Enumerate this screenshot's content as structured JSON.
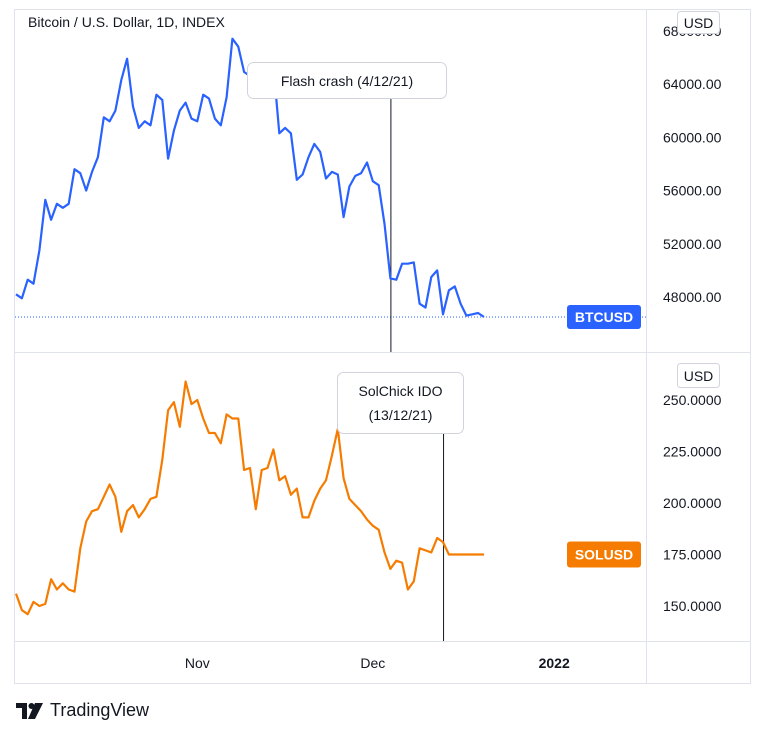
{
  "chart_data": [
    {
      "type": "line",
      "title": "Bitcoin / U.S. Dollar, 1D, INDEX",
      "series": [
        {
          "name": "BTCUSD",
          "color": "#2962ff",
          "x": [
            "2021-10-01",
            "2021-10-02",
            "2021-10-03",
            "2021-10-04",
            "2021-10-05",
            "2021-10-06",
            "2021-10-07",
            "2021-10-08",
            "2021-10-09",
            "2021-10-10",
            "2021-10-11",
            "2021-10-12",
            "2021-10-13",
            "2021-10-14",
            "2021-10-15",
            "2021-10-16",
            "2021-10-17",
            "2021-10-18",
            "2021-10-19",
            "2021-10-20",
            "2021-10-21",
            "2021-10-22",
            "2021-10-23",
            "2021-10-24",
            "2021-10-25",
            "2021-10-26",
            "2021-10-27",
            "2021-10-28",
            "2021-10-29",
            "2021-10-30",
            "2021-10-31",
            "2021-11-01",
            "2021-11-02",
            "2021-11-03",
            "2021-11-04",
            "2021-11-05",
            "2021-11-06",
            "2021-11-07",
            "2021-11-08",
            "2021-11-09",
            "2021-11-10",
            "2021-11-11",
            "2021-11-12",
            "2021-11-13",
            "2021-11-14",
            "2021-11-15",
            "2021-11-16",
            "2021-11-17",
            "2021-11-18",
            "2021-11-19",
            "2021-11-20",
            "2021-11-21",
            "2021-11-22",
            "2021-11-23",
            "2021-11-24",
            "2021-11-25",
            "2021-11-26",
            "2021-11-27",
            "2021-11-28",
            "2021-11-29",
            "2021-11-30",
            "2021-12-01",
            "2021-12-02",
            "2021-12-03",
            "2021-12-04",
            "2021-12-05",
            "2021-12-06",
            "2021-12-07",
            "2021-12-08",
            "2021-12-09",
            "2021-12-10",
            "2021-12-11",
            "2021-12-12",
            "2021-12-13",
            "2021-12-14",
            "2021-12-15",
            "2021-12-16",
            "2021-12-17",
            "2021-12-18",
            "2021-12-19",
            "2021-12-20"
          ],
          "values": [
            48200,
            47900,
            49300,
            49000,
            51500,
            55300,
            53800,
            55000,
            54700,
            55000,
            57600,
            57300,
            56000,
            57400,
            58500,
            61500,
            61200,
            62000,
            64300,
            65900,
            62300,
            60700,
            61200,
            60900,
            63200,
            62800,
            58400,
            60500,
            62000,
            62600,
            61400,
            61200,
            63200,
            62900,
            61400,
            60900,
            63000,
            67400,
            66800,
            64900,
            64600,
            64000,
            64200,
            64300,
            65400,
            60300,
            60700,
            60300,
            56800,
            57200,
            58500,
            59500,
            58900,
            56900,
            57400,
            57200,
            54000,
            56300,
            57100,
            57300,
            58100,
            56700,
            56400,
            53500,
            49400,
            49300,
            50500,
            50500,
            50600,
            47500,
            47200,
            49500,
            50000,
            46700,
            48500,
            48800,
            47500,
            46600,
            46700,
            46800,
            46500
          ],
          "last_label": "BTCUSD"
        }
      ],
      "y_ticks": [
        "68000.00",
        "64000.00",
        "60000.00",
        "56000.00",
        "52000.00",
        "48000.00"
      ],
      "unit_badge": "USD",
      "annotation": {
        "label": "Flash crash (4/12/21)",
        "date": "2021-12-04"
      },
      "show_price_line": true
    },
    {
      "type": "line",
      "series": [
        {
          "name": "SOLUSD",
          "color": "#f57c00",
          "x": [
            "2021-10-01",
            "2021-10-02",
            "2021-10-03",
            "2021-10-04",
            "2021-10-05",
            "2021-10-06",
            "2021-10-07",
            "2021-10-08",
            "2021-10-09",
            "2021-10-10",
            "2021-10-11",
            "2021-10-12",
            "2021-10-13",
            "2021-10-14",
            "2021-10-15",
            "2021-10-16",
            "2021-10-17",
            "2021-10-18",
            "2021-10-19",
            "2021-10-20",
            "2021-10-21",
            "2021-10-22",
            "2021-10-23",
            "2021-10-24",
            "2021-10-25",
            "2021-10-26",
            "2021-10-27",
            "2021-10-28",
            "2021-10-29",
            "2021-10-30",
            "2021-10-31",
            "2021-11-01",
            "2021-11-02",
            "2021-11-03",
            "2021-11-04",
            "2021-11-05",
            "2021-11-06",
            "2021-11-07",
            "2021-11-08",
            "2021-11-09",
            "2021-11-10",
            "2021-11-11",
            "2021-11-12",
            "2021-11-13",
            "2021-11-14",
            "2021-11-15",
            "2021-11-16",
            "2021-11-17",
            "2021-11-18",
            "2021-11-19",
            "2021-11-20",
            "2021-11-21",
            "2021-11-22",
            "2021-11-23",
            "2021-11-24",
            "2021-11-25",
            "2021-11-26",
            "2021-11-27",
            "2021-11-28",
            "2021-11-29",
            "2021-11-30",
            "2021-12-01",
            "2021-12-02",
            "2021-12-03",
            "2021-12-04",
            "2021-12-05",
            "2021-12-06",
            "2021-12-07",
            "2021-12-08",
            "2021-12-09",
            "2021-12-10",
            "2021-12-11",
            "2021-12-12",
            "2021-12-13",
            "2021-12-14",
            "2021-12-15",
            "2021-12-16",
            "2021-12-17",
            "2021-12-18",
            "2021-12-19",
            "2021-12-20"
          ],
          "values": [
            156,
            148,
            146,
            152,
            150,
            151,
            163,
            158,
            161,
            158,
            157,
            178,
            191,
            196,
            197,
            203,
            209,
            203,
            186,
            196,
            199,
            193,
            197,
            202,
            203,
            221,
            245,
            249,
            237,
            259,
            248,
            250,
            241,
            234,
            234,
            229,
            243,
            241,
            241,
            216,
            217,
            197,
            216,
            217,
            226,
            211,
            213,
            204,
            207,
            193,
            193,
            201,
            207,
            211,
            223,
            236,
            212,
            202,
            199,
            196,
            192,
            189,
            187,
            176,
            168,
            172,
            171,
            158,
            162,
            178,
            177,
            176,
            183,
            181,
            175,
            175,
            175,
            175,
            175,
            175,
            175
          ],
          "last_label": "SOLUSD"
        }
      ],
      "y_ticks": [
        "250.0000",
        "225.0000",
        "200.0000",
        "175.0000",
        "150.0000"
      ],
      "unit_badge": "USD",
      "annotation": {
        "label_lines": [
          "SolChick IDO",
          "(13/12/21)"
        ],
        "date": "2021-12-13"
      }
    }
  ],
  "x_axis": {
    "ticks": [
      "Nov",
      "Dec",
      "2022"
    ]
  },
  "brand": {
    "name": "TradingView"
  }
}
